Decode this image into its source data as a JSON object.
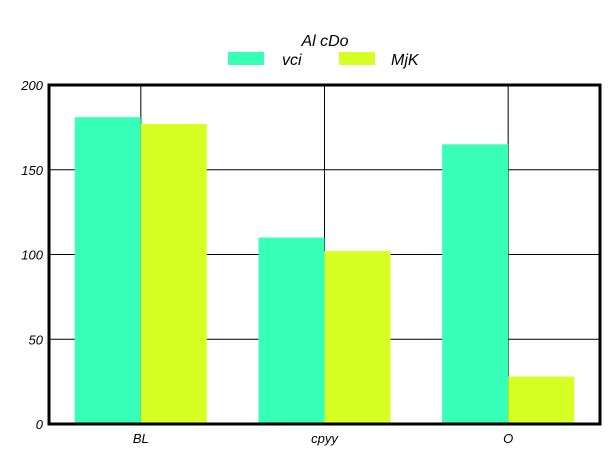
{
  "chart_data": {
    "type": "bar",
    "title": "Al cDo",
    "xlabel": "",
    "ylabel": "",
    "categories": [
      "BL",
      "cpyy",
      "O"
    ],
    "series": [
      {
        "name": "vci",
        "color": "#38ffb8",
        "values": [
          181,
          110,
          165
        ]
      },
      {
        "name": "MjK",
        "color": "#d6ff24",
        "values": [
          177,
          102,
          28
        ]
      }
    ],
    "ylim": [
      0,
      200
    ],
    "yticks": [
      "0",
      "50",
      "100",
      "150",
      "200"
    ],
    "grid": true,
    "legend": "top-center"
  }
}
